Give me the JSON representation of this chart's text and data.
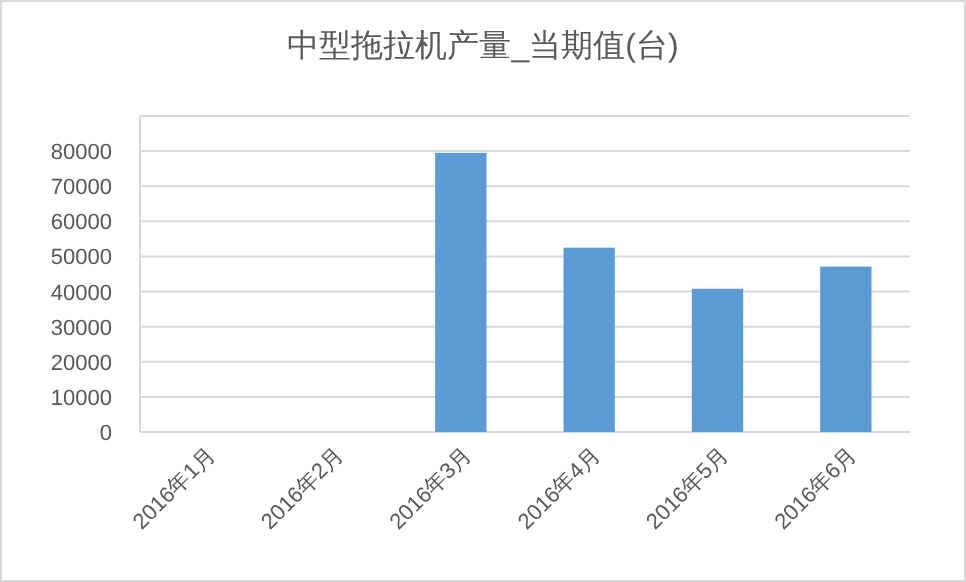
{
  "chart_data": {
    "type": "bar",
    "title": "中型拖拉机产量_当期值(台)",
    "categories": [
      "2016年1月",
      "2016年2月",
      "2016年3月",
      "2016年4月",
      "2016年5月",
      "2016年6月"
    ],
    "values": [
      null,
      null,
      79500,
      52500,
      40800,
      47100
    ],
    "color": "#5b9bd5",
    "ylim": [
      0,
      90000
    ],
    "yticks": [
      0,
      10000,
      20000,
      30000,
      40000,
      50000,
      60000,
      70000,
      80000,
      {
        "value": 90000,
        "label": null
      }
    ],
    "grid": true
  }
}
